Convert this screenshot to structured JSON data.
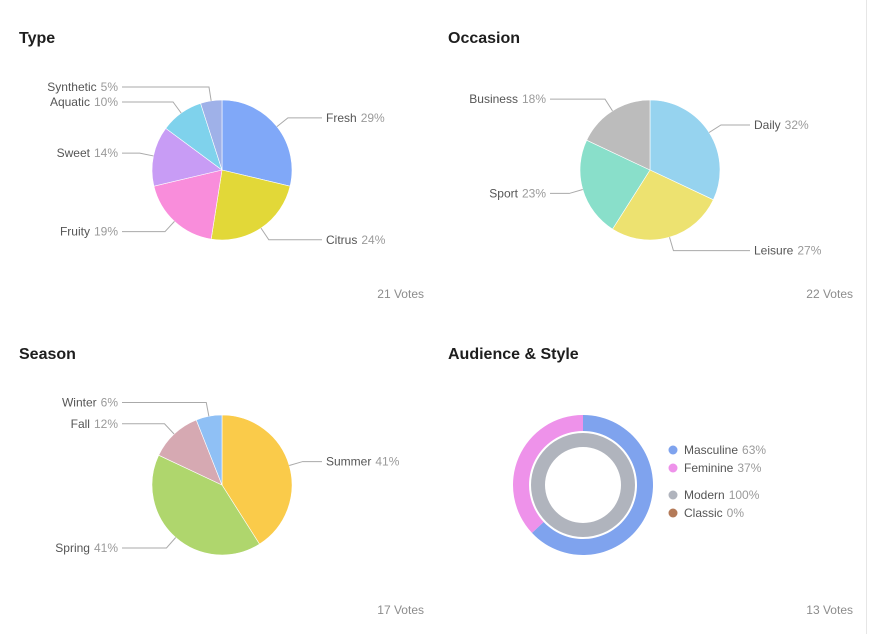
{
  "charts": [
    {
      "title": "Type",
      "votes": "21 Votes",
      "chart_data": {
        "type": "pie",
        "categories": [
          "Fresh",
          "Citrus",
          "Fruity",
          "Sweet",
          "Aquatic",
          "Synthetic"
        ],
        "values": [
          29,
          24,
          19,
          14,
          10,
          5
        ],
        "labels": [
          "29%",
          "24%",
          "19%",
          "14%",
          "10%",
          "5%"
        ],
        "colors": [
          "#80a8f8",
          "#e2d838",
          "#f98ddb",
          "#c89cf5",
          "#7fd2ec",
          "#9fb1e8"
        ]
      }
    },
    {
      "title": "Occasion",
      "votes": "22 Votes",
      "chart_data": {
        "type": "pie",
        "categories": [
          "Daily",
          "Leisure",
          "Sport",
          "Business"
        ],
        "values": [
          32,
          27,
          23,
          18
        ],
        "labels": [
          "32%",
          "27%",
          "23%",
          "18%"
        ],
        "colors": [
          "#96d3ef",
          "#ede270",
          "#89dfca",
          "#bcbcbc"
        ]
      }
    },
    {
      "title": "Season",
      "votes": "17 Votes",
      "chart_data": {
        "type": "pie",
        "categories": [
          "Summer",
          "Spring",
          "Fall",
          "Winter"
        ],
        "values": [
          41,
          41,
          12,
          6
        ],
        "labels": [
          "41%",
          "41%",
          "12%",
          "6%"
        ],
        "colors": [
          "#facb4a",
          "#afd66d",
          "#d6a9b2",
          "#8fc0f5"
        ]
      }
    },
    {
      "title": "Audience & Style",
      "votes": "13 Votes",
      "chart_data": {
        "type": "donut",
        "series": [
          {
            "ring": "outer",
            "categories": [
              "Masculine",
              "Feminine"
            ],
            "values": [
              63,
              37
            ],
            "labels": [
              "63%",
              "37%"
            ],
            "colors": [
              "#7fa3ee",
              "#ee92ea"
            ]
          },
          {
            "ring": "inner",
            "categories": [
              "Modern",
              "Classic"
            ],
            "values": [
              100,
              0
            ],
            "labels": [
              "100%",
              "0%"
            ],
            "colors": [
              "#b0b4bd",
              "#b47a58"
            ]
          }
        ],
        "legend": "right"
      }
    }
  ]
}
